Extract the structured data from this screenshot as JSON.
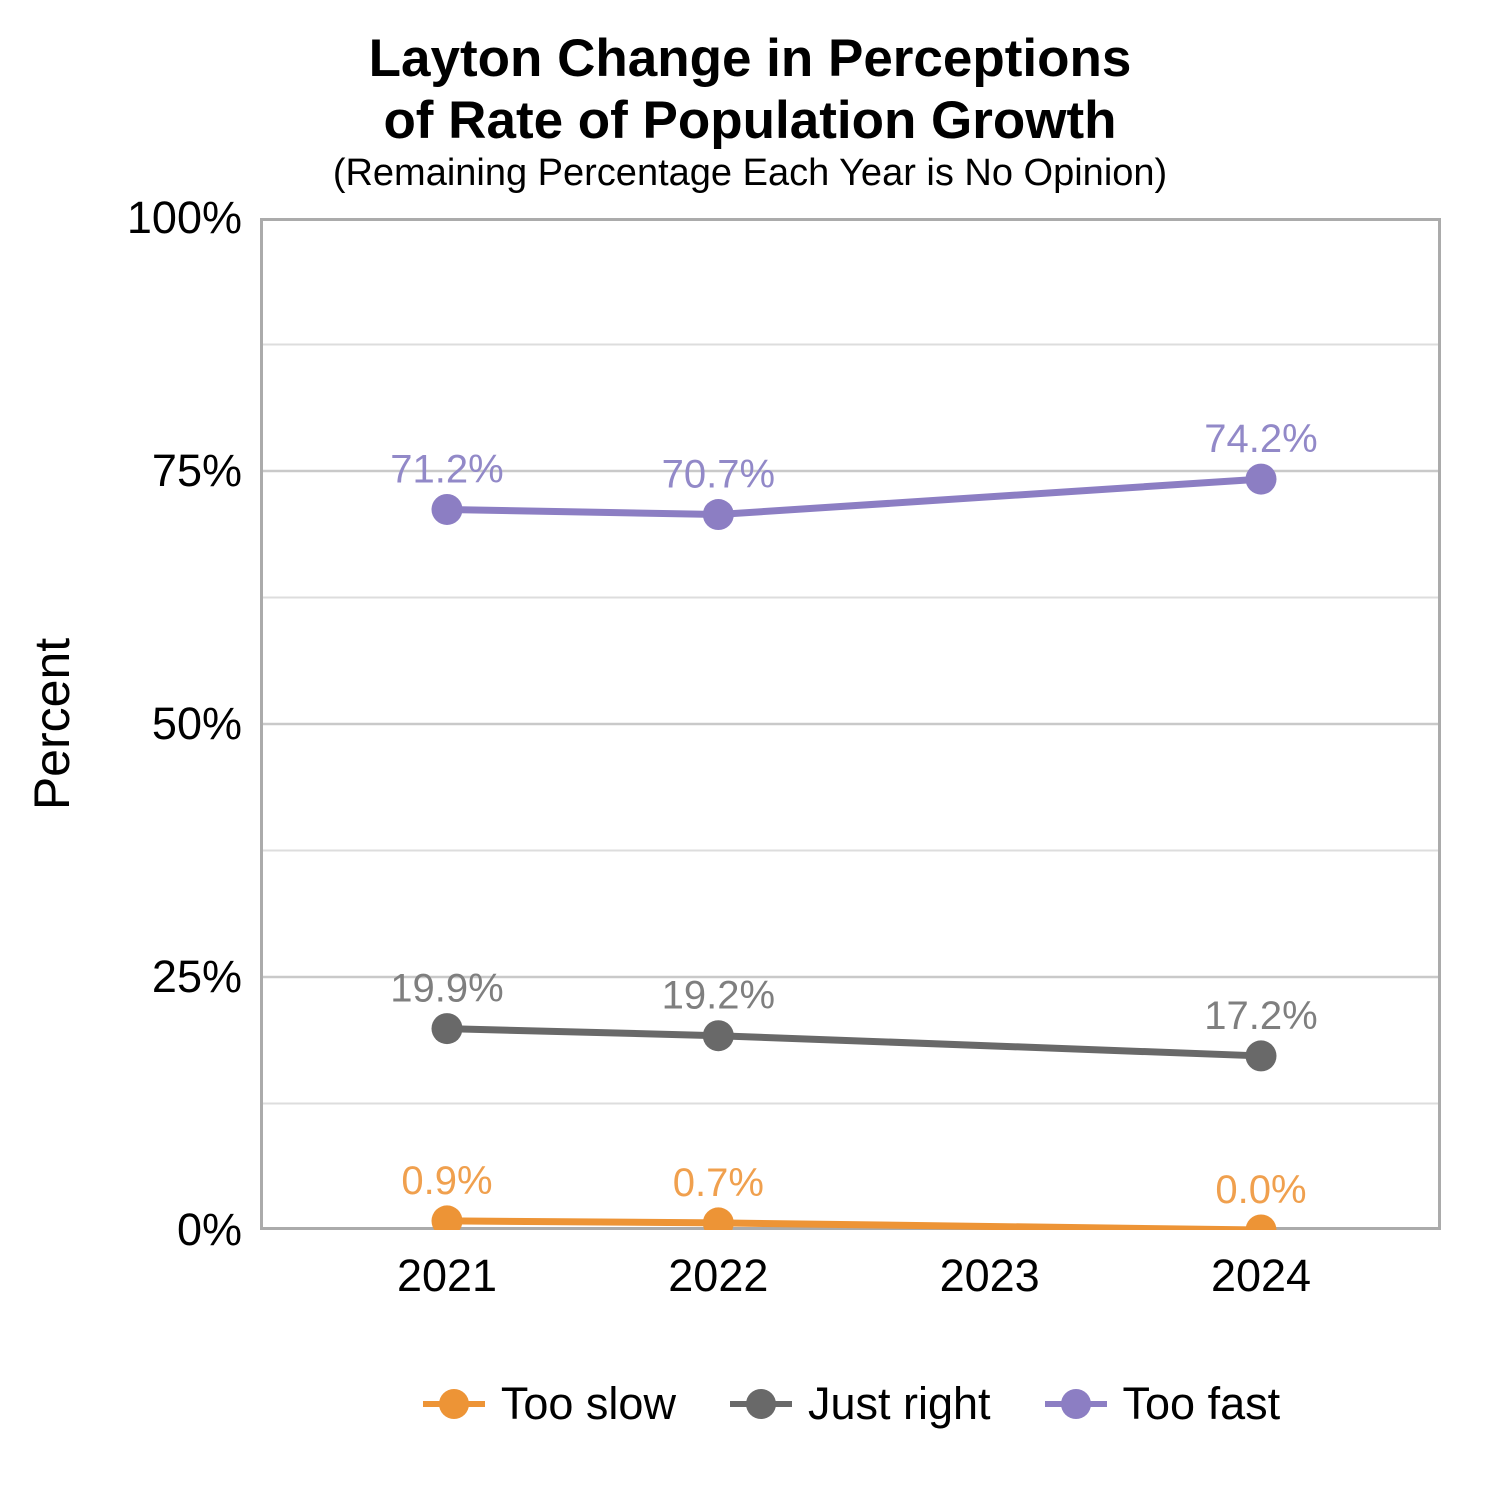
{
  "chart_data": {
    "type": "line",
    "title": "Layton Change in Perceptions\nof Rate of Population Growth",
    "subtitle": "(Remaining Percentage Each Year is No Opinion)",
    "ylabel": "Percent",
    "xlabel": "",
    "x_ticks": [
      2021,
      2022,
      2023,
      2024
    ],
    "y_ticks": [
      0,
      25,
      50,
      75,
      100
    ],
    "y_tick_labels": [
      "0%",
      "25%",
      "50%",
      "75%",
      "100%"
    ],
    "ylim": [
      0,
      100
    ],
    "grid": {
      "major": [
        25,
        50,
        75
      ],
      "minor": [
        12.5,
        37.5,
        62.5,
        87.5
      ]
    },
    "legend_position": "bottom",
    "series": [
      {
        "name": "Too slow",
        "color": "#ED9436",
        "label_color": "#F0A04E",
        "x": [
          2021,
          2022,
          2024
        ],
        "values": [
          0.9,
          0.7,
          0.0
        ],
        "point_labels": [
          "0.9%",
          "0.7%",
          "0.0%"
        ]
      },
      {
        "name": "Just right",
        "color": "#696969",
        "label_color": "#7F7F7F",
        "x": [
          2021,
          2022,
          2024
        ],
        "values": [
          19.9,
          19.2,
          17.2
        ],
        "point_labels": [
          "19.9%",
          "19.2%",
          "17.2%"
        ]
      },
      {
        "name": "Too fast",
        "color": "#8C7EC3",
        "label_color": "#9289C8",
        "x": [
          2021,
          2022,
          2024
        ],
        "values": [
          71.2,
          70.7,
          74.2
        ],
        "point_labels": [
          "71.2%",
          "70.7%",
          "74.2%"
        ]
      }
    ],
    "colors": {
      "panel_border": "#ABABAB",
      "grid_major": "#C9C9C9",
      "grid_minor": "#DDDDDD",
      "text": "#000000"
    }
  }
}
